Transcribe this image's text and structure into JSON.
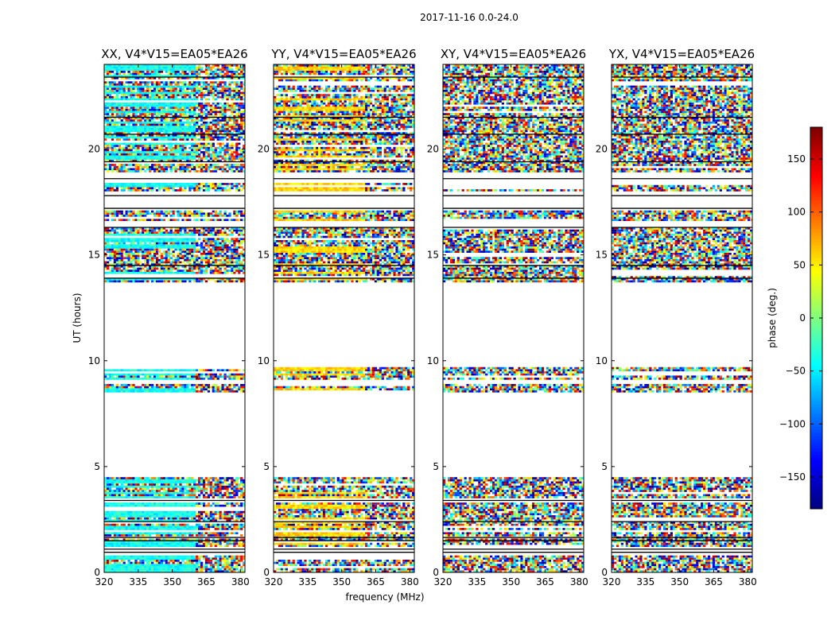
{
  "chart_data": {
    "type": "heatmap",
    "suptitle": "2017-11-16 0.0-24.0",
    "xlabel": "frequency (MHz)",
    "ylabel": "UT (hours)",
    "xlim": [
      320,
      382
    ],
    "ylim": [
      0,
      24
    ],
    "xticks": [
      "320",
      "335",
      "350",
      "365",
      "380"
    ],
    "xtick_values": [
      320,
      335,
      350,
      365,
      380
    ],
    "yticks": [
      "0",
      "5",
      "10",
      "15",
      "20"
    ],
    "ytick_values": [
      0,
      5,
      10,
      15,
      20
    ],
    "panels": [
      {
        "title": "XX, V4*V15=EA05*EA26",
        "base_phase": -40
      },
      {
        "title": "YY, V4*V15=EA05*EA26",
        "base_phase": 60
      },
      {
        "title": "XY, V4*V15=EA05*EA26",
        "base_phase": null
      },
      {
        "title": "YX, V4*V15=EA05*EA26",
        "base_phase": null
      }
    ],
    "colorbar": {
      "label": "phase (deg.)",
      "range": [
        -180,
        180
      ],
      "ticks": [
        "150",
        "100",
        "50",
        "0",
        "−50",
        "−100",
        "−150"
      ],
      "tick_values": [
        150,
        100,
        50,
        0,
        -50,
        -100,
        -150
      ],
      "colormap": "jet"
    },
    "data_bands_hours": [
      [
        0.0,
        0.8
      ],
      [
        1.2,
        1.9
      ],
      [
        2.0,
        3.3
      ],
      [
        3.5,
        4.5
      ],
      [
        8.5,
        8.9
      ],
      [
        9.1,
        9.7
      ],
      [
        13.7,
        16.3
      ],
      [
        16.6,
        17.1
      ],
      [
        18.0,
        18.4
      ],
      [
        18.9,
        24.0
      ]
    ],
    "gap_lines_hours": [
      0.95,
      1.1,
      1.5,
      1.65,
      2.4,
      3.4,
      13.9,
      14.5,
      16.3,
      17.2,
      17.8,
      18.6,
      19.4,
      20.7,
      21.5,
      23.4
    ]
  }
}
